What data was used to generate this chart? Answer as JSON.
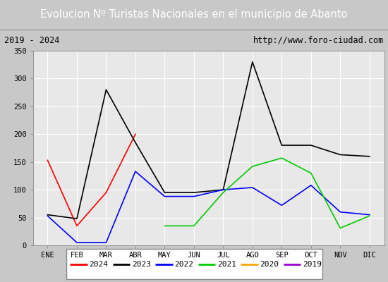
{
  "title": "Evolucion Nº Turistas Nacionales en el municipio de Abanto",
  "subtitle_left": "2019 - 2024",
  "subtitle_right": "http://www.foro-ciudad.com",
  "months": [
    "ENE",
    "FEB",
    "MAR",
    "ABR",
    "MAY",
    "JUN",
    "JUL",
    "AGO",
    "SEP",
    "OCT",
    "NOV",
    "DIC"
  ],
  "series": {
    "2024": [
      153,
      35,
      95,
      200,
      null,
      null,
      null,
      null,
      null,
      null,
      null,
      null
    ],
    "2023": [
      55,
      48,
      280,
      185,
      95,
      95,
      100,
      330,
      180,
      180,
      163,
      160
    ],
    "2022": [
      53,
      5,
      5,
      133,
      88,
      88,
      100,
      104,
      72,
      108,
      60,
      55
    ],
    "2021": [
      null,
      null,
      null,
      null,
      35,
      35,
      95,
      142,
      157,
      130,
      31,
      53
    ],
    "2020": [
      null,
      null,
      null,
      null,
      null,
      null,
      null,
      null,
      null,
      null,
      null,
      null
    ],
    "2019": [
      null,
      null,
      null,
      null,
      null,
      null,
      null,
      null,
      null,
      null,
      null,
      null
    ]
  },
  "colors": {
    "2024": "#ff0000",
    "2023": "#000000",
    "2022": "#0000ff",
    "2021": "#00cc00",
    "2020": "#ffa500",
    "2019": "#9900cc"
  },
  "ylim": [
    0,
    350
  ],
  "yticks": [
    0,
    50,
    100,
    150,
    200,
    250,
    300,
    350
  ],
  "title_bg": "#4080c0",
  "title_color": "#ffffff",
  "subtitle_bg": "#f0f0f0",
  "plot_bg": "#e8e8e8",
  "grid_color": "#ffffff",
  "outer_bg": "#c8c8c8"
}
